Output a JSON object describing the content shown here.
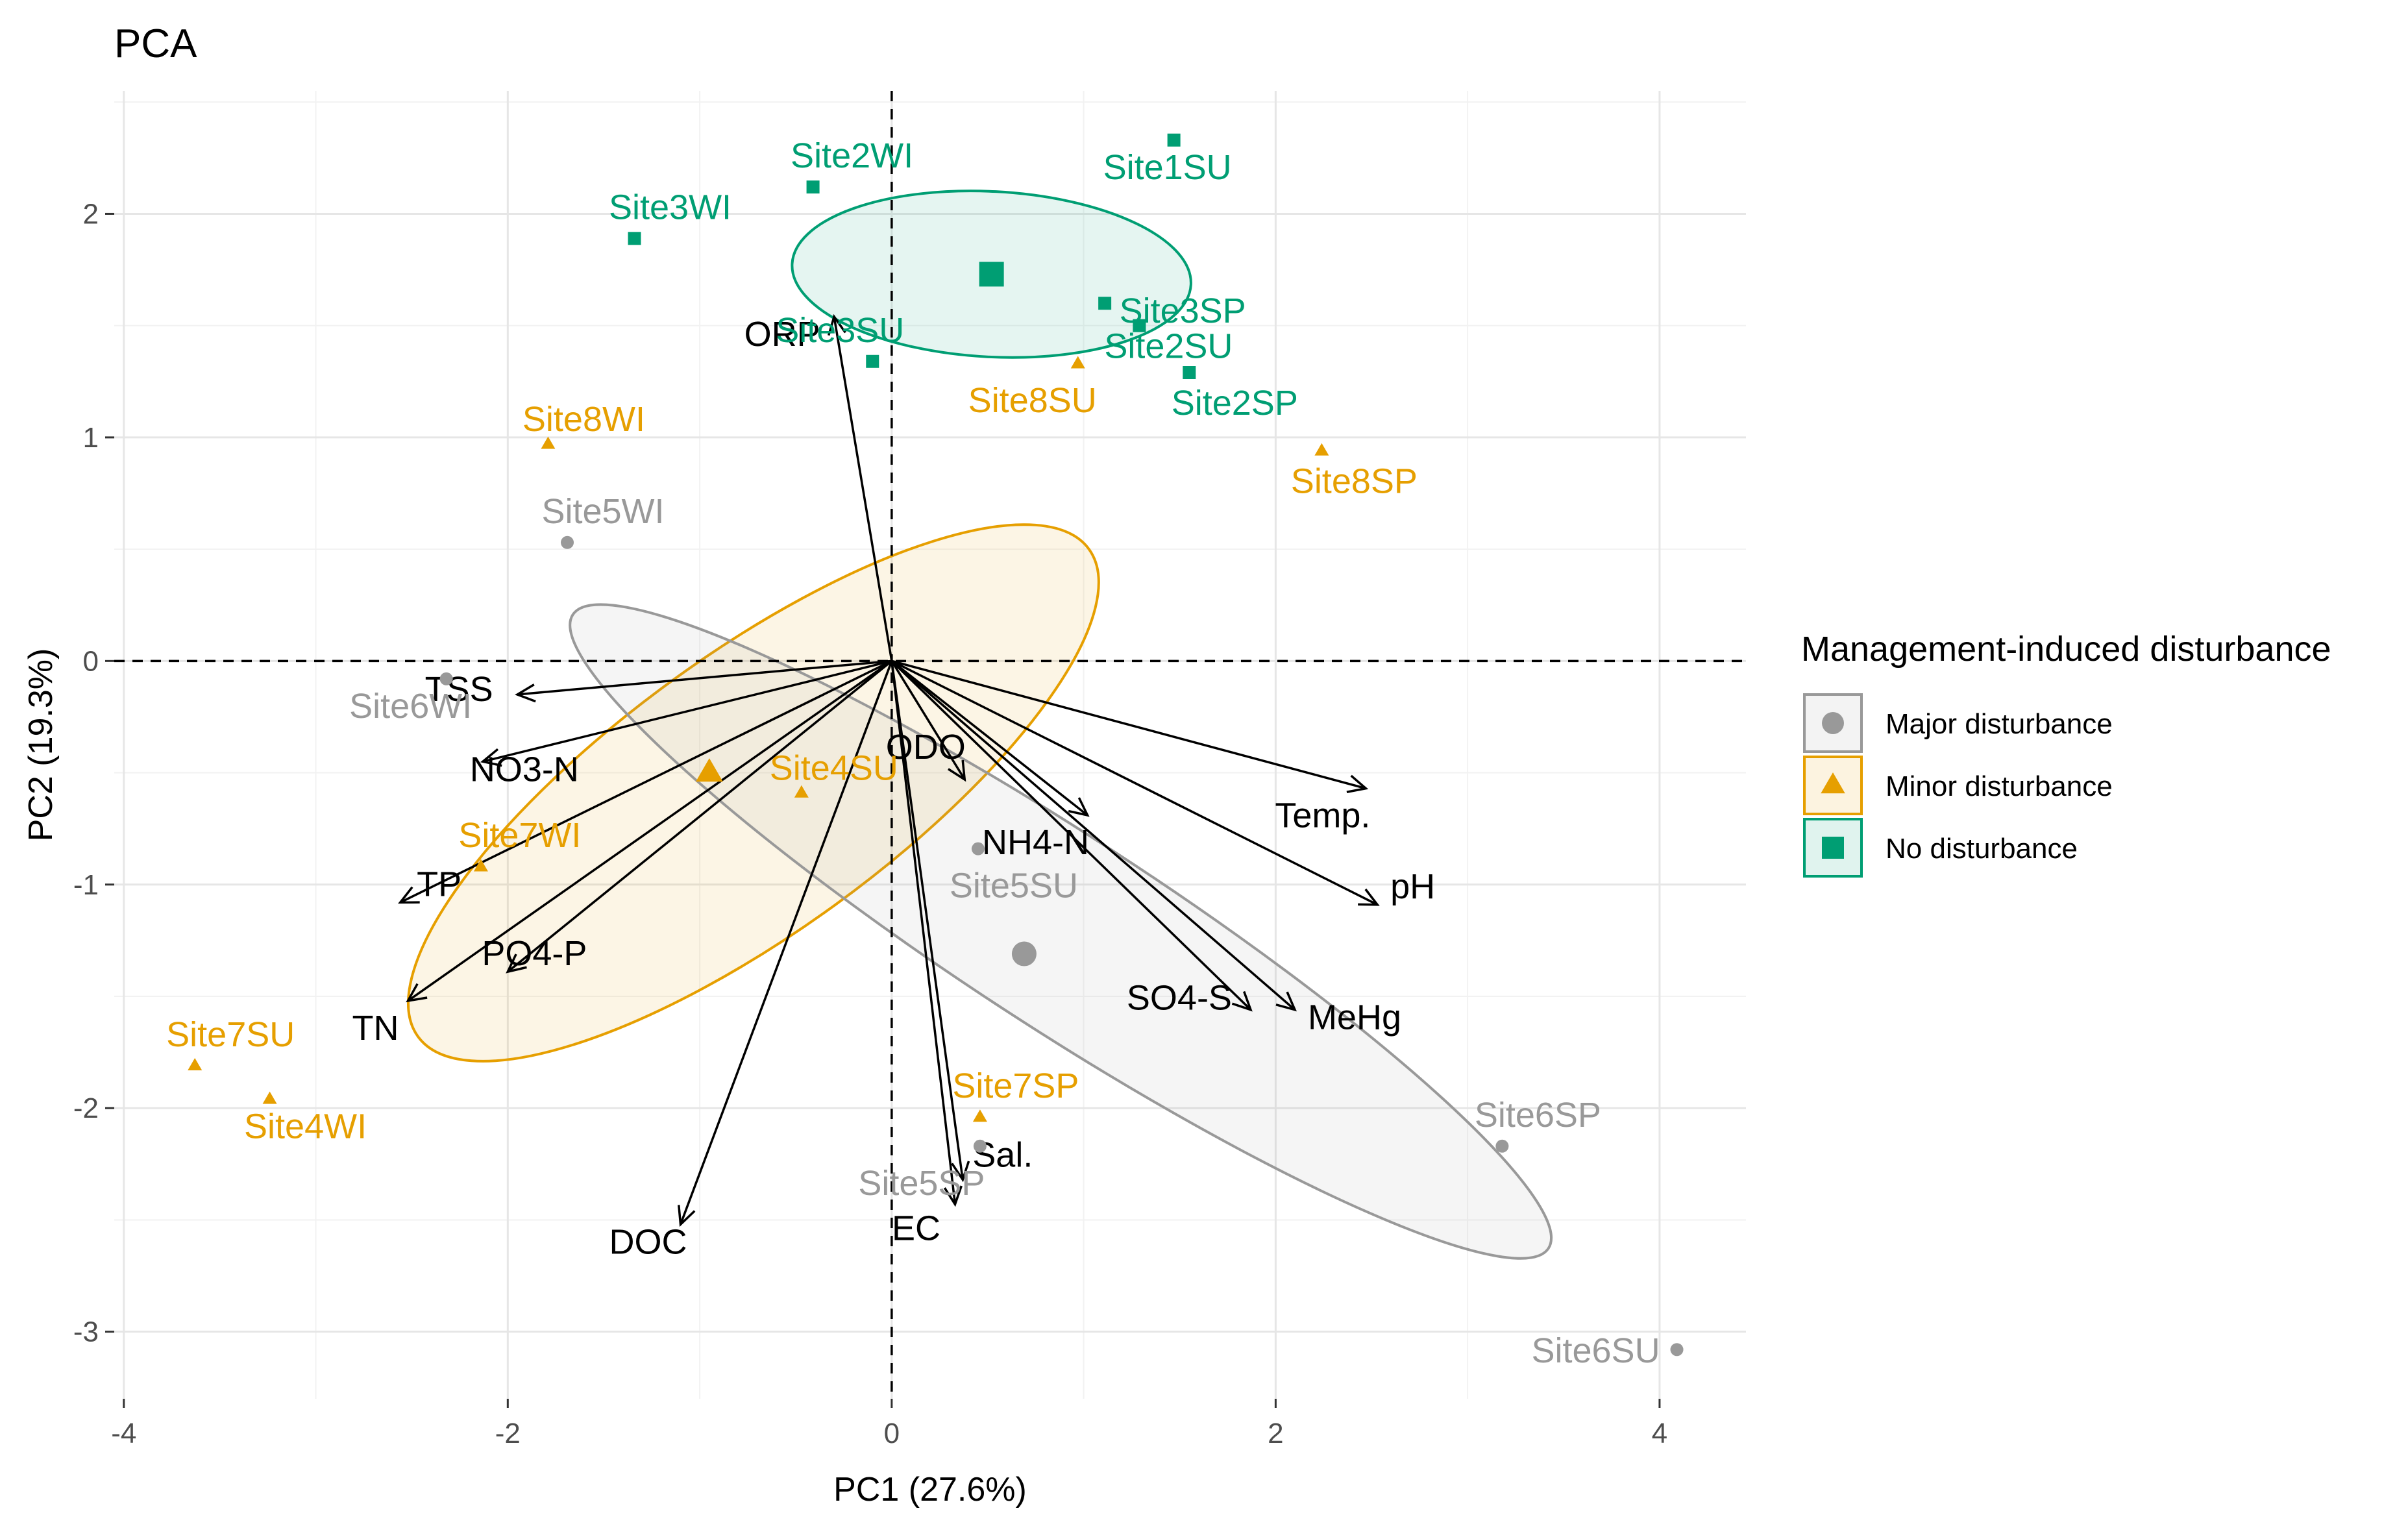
{
  "chart_data": {
    "type": "scatter",
    "title": "PCA",
    "xlabel": "PC1 (27.6%)",
    "ylabel": "PC2 (19.3%)",
    "xlim": [
      -4.05,
      4.45
    ],
    "ylim": [
      -3.3,
      2.55
    ],
    "x_ticks": [
      -4,
      -2,
      0,
      2,
      4
    ],
    "x_tick_labels": [
      "-4",
      "-2",
      "0",
      "2",
      "4"
    ],
    "y_ticks": [
      -3,
      -2,
      -1,
      0,
      1,
      2
    ],
    "y_tick_labels": [
      "-3",
      "-2",
      "-1",
      "0",
      "1",
      "2"
    ],
    "grid": true,
    "legend": {
      "title": "Management-induced disturbance",
      "position": "right",
      "entries": [
        {
          "label": "Major disturbance",
          "shape": "circle",
          "color": "#999999"
        },
        {
          "label": "Minor disturbance",
          "shape": "triangle",
          "color": "#E69F00"
        },
        {
          "label": "No disturbance",
          "shape": "square",
          "color": "#009E73"
        }
      ]
    },
    "groups": {
      "Major disturbance": {
        "color": "#999999",
        "fill": "#999999",
        "shape": "circle"
      },
      "Minor disturbance": {
        "color": "#E69F00",
        "fill": "#E69F00",
        "shape": "triangle"
      },
      "No disturbance": {
        "color": "#009E73",
        "fill": "#009E73",
        "shape": "square"
      }
    },
    "points": [
      {
        "label": "Site1SU",
        "group": "No disturbance",
        "x": 1.47,
        "y": 2.33
      },
      {
        "label": "Site2WI",
        "group": "No disturbance",
        "x": -0.41,
        "y": 2.12
      },
      {
        "label": "Site3WI",
        "group": "No disturbance",
        "x": -1.34,
        "y": 1.89
      },
      {
        "label": "Site3SP",
        "group": "No disturbance",
        "x": 1.11,
        "y": 1.6
      },
      {
        "label": "Site2SU",
        "group": "No disturbance",
        "x": 1.29,
        "y": 1.5
      },
      {
        "label": "Site2SP",
        "group": "No disturbance",
        "x": 1.55,
        "y": 1.29
      },
      {
        "label": "Site3SU",
        "group": "No disturbance",
        "x": -0.1,
        "y": 1.34
      },
      {
        "label": "Site8SU",
        "group": "Minor disturbance",
        "x": 0.97,
        "y": 1.33
      },
      {
        "label": "Site8WI",
        "group": "Minor disturbance",
        "x": -1.79,
        "y": 0.97
      },
      {
        "label": "Site8SP",
        "group": "Minor disturbance",
        "x": 2.24,
        "y": 0.94
      },
      {
        "label": "Site4SU",
        "group": "Minor disturbance",
        "x": -0.47,
        "y": -0.59
      },
      {
        "label": "Site7WI",
        "group": "Minor disturbance",
        "x": -2.14,
        "y": -0.92
      },
      {
        "label": "Site7SU",
        "group": "Minor disturbance",
        "x": -3.63,
        "y": -1.81
      },
      {
        "label": "Site4WI",
        "group": "Minor disturbance",
        "x": -3.24,
        "y": -1.96
      },
      {
        "label": "Site7SP",
        "group": "Minor disturbance",
        "x": 0.46,
        "y": -2.04
      },
      {
        "label": "Site5WI",
        "group": "Major disturbance",
        "x": -1.69,
        "y": 0.53
      },
      {
        "label": "Site6WI",
        "group": "Major disturbance",
        "x": -2.32,
        "y": -0.08
      },
      {
        "label": "Site5SU",
        "group": "Major disturbance",
        "x": 0.45,
        "y": -0.84
      },
      {
        "label": "Site5SP",
        "group": "Major disturbance",
        "x": 0.46,
        "y": -2.17
      },
      {
        "label": "Site6SP",
        "group": "Major disturbance",
        "x": 3.18,
        "y": -2.17
      },
      {
        "label": "Site6SU",
        "group": "Major disturbance",
        "x": 4.09,
        "y": -3.08
      }
    ],
    "centroids": [
      {
        "group": "No disturbance",
        "x": 0.52,
        "y": 1.73
      },
      {
        "group": "Minor disturbance",
        "x": -0.95,
        "y": -0.5
      },
      {
        "group": "Major disturbance",
        "x": 0.69,
        "y": -1.31
      }
    ],
    "ellipses": [
      {
        "group": "No disturbance",
        "cx": 0.52,
        "cy": 1.73,
        "rx": 1.04,
        "ry": 0.37,
        "angle_deg": -3
      },
      {
        "group": "Minor disturbance",
        "cx": -0.72,
        "cy": -0.59,
        "rx": 2.16,
        "ry": 0.62,
        "angle_deg": 36
      },
      {
        "group": "Major disturbance",
        "cx": 0.88,
        "cy": -1.21,
        "rx": 3.03,
        "ry": 0.43,
        "angle_deg": -33
      }
    ],
    "loadings": [
      {
        "variable": "ORP",
        "x": -0.3,
        "y": 1.54
      },
      {
        "variable": "TSS",
        "x": -1.95,
        "y": -0.15
      },
      {
        "variable": "NO3-N",
        "x": -2.13,
        "y": -0.45
      },
      {
        "variable": "TP",
        "x": -2.56,
        "y": -1.08
      },
      {
        "variable": "PO4-P",
        "x": -2.0,
        "y": -1.39
      },
      {
        "variable": "TN",
        "x": -2.52,
        "y": -1.52
      },
      {
        "variable": "DOC",
        "x": -1.1,
        "y": -2.52
      },
      {
        "variable": "EC",
        "x": 0.33,
        "y": -2.43
      },
      {
        "variable": "Sal.",
        "x": 0.37,
        "y": -2.32
      },
      {
        "variable": "ODO",
        "x": 0.38,
        "y": -0.53
      },
      {
        "variable": "NH4-N",
        "x": 1.02,
        "y": -0.69
      },
      {
        "variable": "Temp.",
        "x": 2.47,
        "y": -0.57
      },
      {
        "variable": "pH",
        "x": 2.53,
        "y": -1.09
      },
      {
        "variable": "SO4-S",
        "x": 1.87,
        "y": -1.56
      },
      {
        "variable": "MeHg",
        "x": 2.1,
        "y": -1.56
      }
    ]
  }
}
